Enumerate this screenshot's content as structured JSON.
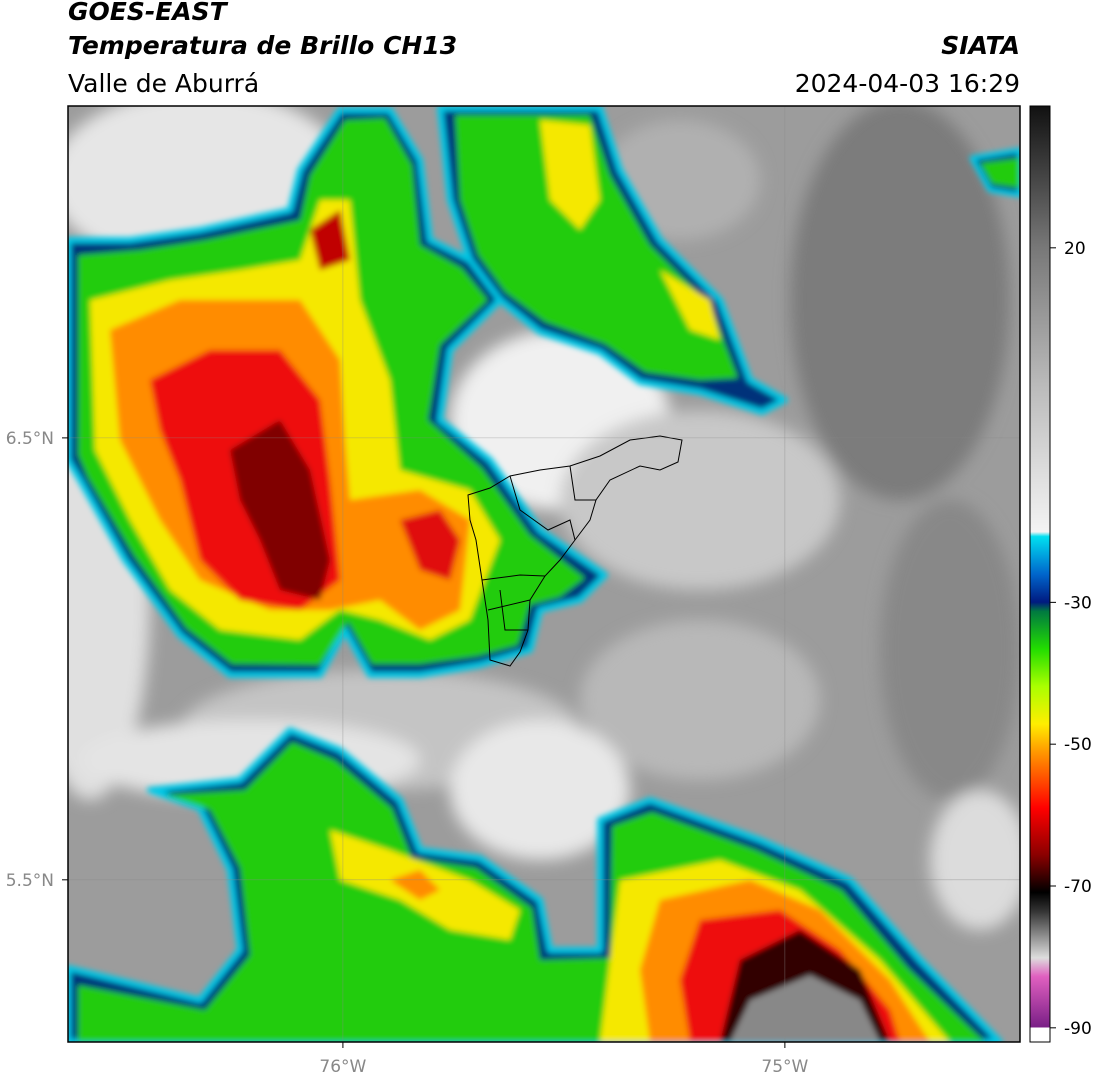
{
  "header": {
    "title": "GOES-EAST",
    "subtitle": "Temperatura de Brillo CH13",
    "region": "Valle de Aburrá",
    "organization": "SIATA",
    "datetime": "2024-04-03 16:29"
  },
  "map": {
    "lat_lim": [
      5.133,
      7.251
    ],
    "lon_lim": [
      -76.622,
      -74.468
    ],
    "lat_ticks": [
      {
        "value": 6.5,
        "label": "6.5°N"
      },
      {
        "value": 5.5,
        "label": "5.5°N"
      }
    ],
    "lon_ticks": [
      {
        "value": -76,
        "label": "76°W"
      },
      {
        "value": -75,
        "label": "75°W"
      }
    ]
  },
  "colorbar": {
    "lim": [
      -92,
      40
    ],
    "ticks": [
      20,
      -30,
      -50,
      -70,
      -90
    ]
  }
}
